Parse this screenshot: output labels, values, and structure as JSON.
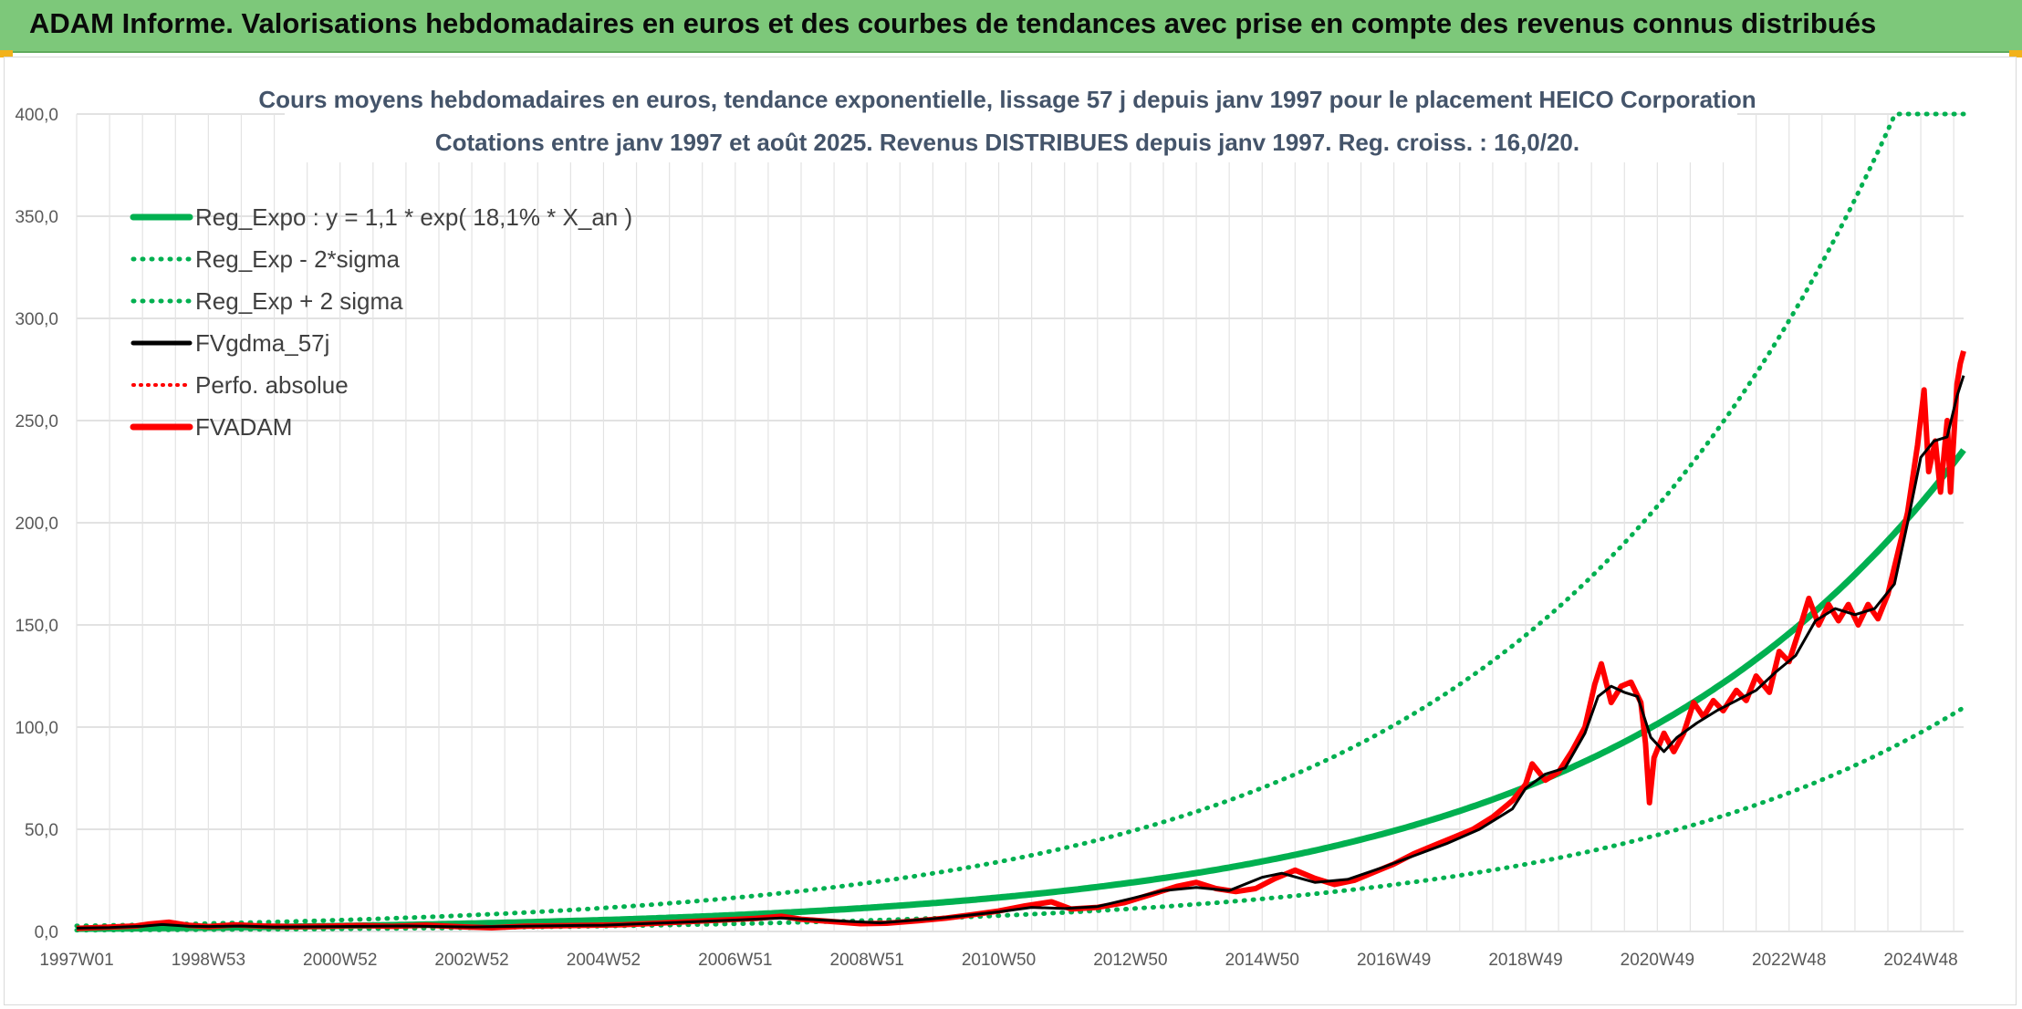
{
  "header": {
    "title": "ADAM Informe. Valorisations hebdomadaires en euros et des courbes de tendances avec prise en compte des revenus connus distribués"
  },
  "colors": {
    "banner": "#7dc87a",
    "reg_green": "#00b050",
    "black": "#000000",
    "red": "#ff0000",
    "title_text": "#44546a"
  },
  "chart_data": {
    "type": "line",
    "title": "Cours moyens hebdomadaires en euros, tendance exponentielle, lissage 57 j depuis janv 1997 pour le placement HEICO Corporation",
    "subtitle": "Cotations entre janv 1997 et août 2025. Revenus DISTRIBUES depuis janv 1997. Reg. croiss. : 16,0/20.",
    "ylim": [
      0,
      400
    ],
    "y_ticks": [
      "0,0",
      "50,0",
      "100,0",
      "150,0",
      "200,0",
      "250,0",
      "300,0",
      "350,0",
      "400,0"
    ],
    "x_ticks": [
      "1997W01",
      "1998W53",
      "2000W52",
      "2002W52",
      "2004W52",
      "2006W51",
      "2008W51",
      "2010W50",
      "2012W50",
      "2014W50",
      "2016W49",
      "2018W49",
      "2020W49",
      "2022W48",
      "2024W48"
    ],
    "x_range_years": [
      1997.0,
      2025.65
    ],
    "grid": true,
    "legend_position": "top-left",
    "regression": {
      "a": 1.1,
      "rate": 0.181,
      "sigma_factor": 2
    },
    "series": [
      {
        "name": "Reg_Expo : y = 1,1 * exp( 18,1% *  X_an )",
        "style": "solid-green-thick"
      },
      {
        "name": "Reg_Exp - 2*sigma",
        "style": "dotted-green"
      },
      {
        "name": "Reg_Exp + 2 sigma",
        "style": "dotted-green"
      },
      {
        "name": "FVgdma_57j",
        "style": "solid-black",
        "points": [
          [
            1997.0,
            1.6
          ],
          [
            1997.5,
            1.9
          ],
          [
            1998.0,
            2.6
          ],
          [
            1998.3,
            3.4
          ],
          [
            1998.7,
            2.6
          ],
          [
            1999.0,
            2.4
          ],
          [
            1999.5,
            2.7
          ],
          [
            2000.0,
            2.2
          ],
          [
            2001.0,
            2.4
          ],
          [
            2002.0,
            2.7
          ],
          [
            2003.0,
            2.2
          ],
          [
            2004.0,
            2.7
          ],
          [
            2005.0,
            3.1
          ],
          [
            2006.0,
            4.3
          ],
          [
            2007.0,
            5.6
          ],
          [
            2007.7,
            6.6
          ],
          [
            2008.3,
            5.6
          ],
          [
            2009.2,
            4.2
          ],
          [
            2010.0,
            6.2
          ],
          [
            2010.5,
            7.8
          ],
          [
            2011.0,
            9.6
          ],
          [
            2011.5,
            11.8
          ],
          [
            2012.0,
            11.2
          ],
          [
            2012.5,
            12.2
          ],
          [
            2013.0,
            16.0
          ],
          [
            2013.5,
            20.0
          ],
          [
            2014.0,
            21.5
          ],
          [
            2014.5,
            20.0
          ],
          [
            2015.0,
            26.5
          ],
          [
            2015.3,
            28.5
          ],
          [
            2015.8,
            24.0
          ],
          [
            2016.3,
            25.5
          ],
          [
            2016.8,
            31.0
          ],
          [
            2017.3,
            37.0
          ],
          [
            2017.8,
            43.0
          ],
          [
            2018.3,
            50.0
          ],
          [
            2018.8,
            60.0
          ],
          [
            2019.0,
            70.0
          ],
          [
            2019.3,
            77.0
          ],
          [
            2019.6,
            80.0
          ],
          [
            2019.9,
            97.0
          ],
          [
            2020.1,
            115.0
          ],
          [
            2020.3,
            120.0
          ],
          [
            2020.5,
            117.0
          ],
          [
            2020.7,
            115.0
          ],
          [
            2020.9,
            95.0
          ],
          [
            2021.1,
            88.0
          ],
          [
            2021.3,
            95.0
          ],
          [
            2021.6,
            102.0
          ],
          [
            2021.9,
            108.0
          ],
          [
            2022.2,
            113.0
          ],
          [
            2022.5,
            118.0
          ],
          [
            2022.8,
            127.0
          ],
          [
            2023.1,
            135.0
          ],
          [
            2023.4,
            152.0
          ],
          [
            2023.7,
            158.0
          ],
          [
            2024.0,
            155.0
          ],
          [
            2024.3,
            158.0
          ],
          [
            2024.6,
            170.0
          ],
          [
            2024.8,
            200.0
          ],
          [
            2025.0,
            232.0
          ],
          [
            2025.2,
            240.0
          ],
          [
            2025.4,
            242.0
          ],
          [
            2025.55,
            262.0
          ],
          [
            2025.65,
            272.0
          ]
        ]
      },
      {
        "name": "Perfo. absolue",
        "style": "dotted-red"
      },
      {
        "name": "FVADAM",
        "style": "solid-red-thick",
        "points": [
          [
            1997.0,
            1.5
          ],
          [
            1997.4,
            2.0
          ],
          [
            1997.9,
            2.7
          ],
          [
            1998.1,
            3.6
          ],
          [
            1998.4,
            4.5
          ],
          [
            1998.7,
            3.0
          ],
          [
            1999.0,
            2.4
          ],
          [
            1999.4,
            3.2
          ],
          [
            1999.8,
            2.7
          ],
          [
            2000.3,
            2.3
          ],
          [
            2000.8,
            2.6
          ],
          [
            2001.3,
            2.9
          ],
          [
            2001.8,
            2.5
          ],
          [
            2002.3,
            3.1
          ],
          [
            2002.8,
            2.3
          ],
          [
            2003.3,
            1.8
          ],
          [
            2003.8,
            2.6
          ],
          [
            2004.3,
            2.8
          ],
          [
            2004.8,
            3.0
          ],
          [
            2005.3,
            3.3
          ],
          [
            2005.8,
            4.0
          ],
          [
            2006.3,
            4.8
          ],
          [
            2006.8,
            5.6
          ],
          [
            2007.3,
            6.4
          ],
          [
            2007.7,
            7.4
          ],
          [
            2008.0,
            6.0
          ],
          [
            2008.4,
            5.0
          ],
          [
            2008.9,
            3.8
          ],
          [
            2009.3,
            4.0
          ],
          [
            2009.8,
            5.3
          ],
          [
            2010.2,
            6.5
          ],
          [
            2010.6,
            8.2
          ],
          [
            2011.0,
            10.0
          ],
          [
            2011.4,
            12.5
          ],
          [
            2011.8,
            14.5
          ],
          [
            2012.1,
            11.0
          ],
          [
            2012.5,
            11.8
          ],
          [
            2012.9,
            14.0
          ],
          [
            2013.3,
            18.0
          ],
          [
            2013.7,
            22.0
          ],
          [
            2014.0,
            24.0
          ],
          [
            2014.3,
            21.0
          ],
          [
            2014.6,
            19.5
          ],
          [
            2014.9,
            21.0
          ],
          [
            2015.2,
            26.0
          ],
          [
            2015.5,
            30.0
          ],
          [
            2015.8,
            26.0
          ],
          [
            2016.1,
            23.0
          ],
          [
            2016.4,
            25.0
          ],
          [
            2016.7,
            29.0
          ],
          [
            2017.0,
            33.0
          ],
          [
            2017.3,
            38.0
          ],
          [
            2017.6,
            42.0
          ],
          [
            2017.9,
            46.0
          ],
          [
            2018.2,
            50.0
          ],
          [
            2018.5,
            56.0
          ],
          [
            2018.8,
            64.0
          ],
          [
            2019.0,
            72.0
          ],
          [
            2019.1,
            82.0
          ],
          [
            2019.3,
            74.0
          ],
          [
            2019.5,
            78.0
          ],
          [
            2019.7,
            88.0
          ],
          [
            2019.9,
            100.0
          ],
          [
            2020.05,
            121.0
          ],
          [
            2020.15,
            131.0
          ],
          [
            2020.3,
            112.0
          ],
          [
            2020.45,
            120.0
          ],
          [
            2020.6,
            122.0
          ],
          [
            2020.75,
            112.0
          ],
          [
            2020.82,
            92.0
          ],
          [
            2020.88,
            63.0
          ],
          [
            2020.95,
            85.0
          ],
          [
            2021.1,
            97.0
          ],
          [
            2021.25,
            88.0
          ],
          [
            2021.4,
            97.0
          ],
          [
            2021.55,
            112.0
          ],
          [
            2021.7,
            105.0
          ],
          [
            2021.85,
            113.0
          ],
          [
            2022.0,
            108.0
          ],
          [
            2022.2,
            118.0
          ],
          [
            2022.35,
            113.0
          ],
          [
            2022.5,
            125.0
          ],
          [
            2022.7,
            117.0
          ],
          [
            2022.85,
            137.0
          ],
          [
            2023.0,
            132.0
          ],
          [
            2023.15,
            147.0
          ],
          [
            2023.3,
            163.0
          ],
          [
            2023.45,
            150.0
          ],
          [
            2023.6,
            160.0
          ],
          [
            2023.75,
            152.0
          ],
          [
            2023.9,
            160.0
          ],
          [
            2024.05,
            150.0
          ],
          [
            2024.2,
            160.0
          ],
          [
            2024.35,
            153.0
          ],
          [
            2024.5,
            165.0
          ],
          [
            2024.65,
            185.0
          ],
          [
            2024.8,
            205.0
          ],
          [
            2024.95,
            238.0
          ],
          [
            2025.05,
            265.0
          ],
          [
            2025.12,
            225.0
          ],
          [
            2025.22,
            240.0
          ],
          [
            2025.3,
            215.0
          ],
          [
            2025.4,
            250.0
          ],
          [
            2025.45,
            215.0
          ],
          [
            2025.55,
            268.0
          ],
          [
            2025.6,
            278.0
          ],
          [
            2025.65,
            284.0
          ]
        ]
      }
    ]
  }
}
